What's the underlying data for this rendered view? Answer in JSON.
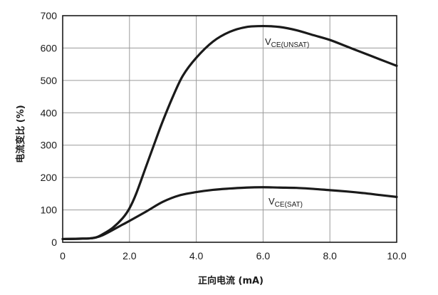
{
  "chart_data": {
    "type": "line",
    "xlabel": "正向电流 (mA)",
    "ylabel": "电流变比 (%)",
    "xlim": [
      0,
      10
    ],
    "ylim": [
      0,
      700
    ],
    "x_ticks": [
      "0",
      "2.0",
      "4.0",
      "6.0",
      "8.0",
      "10.0"
    ],
    "y_ticks": [
      "0",
      "100",
      "200",
      "300",
      "400",
      "500",
      "600",
      "700"
    ],
    "grid": true,
    "series": [
      {
        "name": "VCE(UNSAT)",
        "label_main": "V",
        "label_sub": "CE(UNSAT)",
        "x": [
          0,
          0.5,
          0.8,
          1.0,
          1.2,
          1.5,
          1.8,
          2.0,
          2.2,
          2.5,
          2.8,
          3.0,
          3.3,
          3.6,
          4.0,
          4.5,
          5.0,
          5.5,
          6.0,
          6.5,
          7.0,
          7.5,
          8.0,
          8.5,
          9.0,
          9.5,
          10.0
        ],
        "y": [
          10,
          11,
          12,
          15,
          25,
          45,
          75,
          105,
          150,
          235,
          320,
          375,
          450,
          515,
          570,
          620,
          650,
          665,
          668,
          665,
          655,
          640,
          625,
          605,
          585,
          565,
          545
        ]
      },
      {
        "name": "VCE(SAT)",
        "label_main": "V",
        "label_sub": "CE(SAT)",
        "x": [
          0,
          0.5,
          0.8,
          1.0,
          1.2,
          1.5,
          1.8,
          2.0,
          2.5,
          3.0,
          3.5,
          4.0,
          4.5,
          5.0,
          5.5,
          6.0,
          6.5,
          7.0,
          7.5,
          8.0,
          8.5,
          9.0,
          9.5,
          10.0
        ],
        "y": [
          10,
          11,
          12,
          15,
          22,
          38,
          55,
          66,
          95,
          125,
          145,
          155,
          162,
          166,
          169,
          170,
          169,
          168,
          165,
          161,
          157,
          152,
          146,
          140
        ]
      }
    ]
  }
}
